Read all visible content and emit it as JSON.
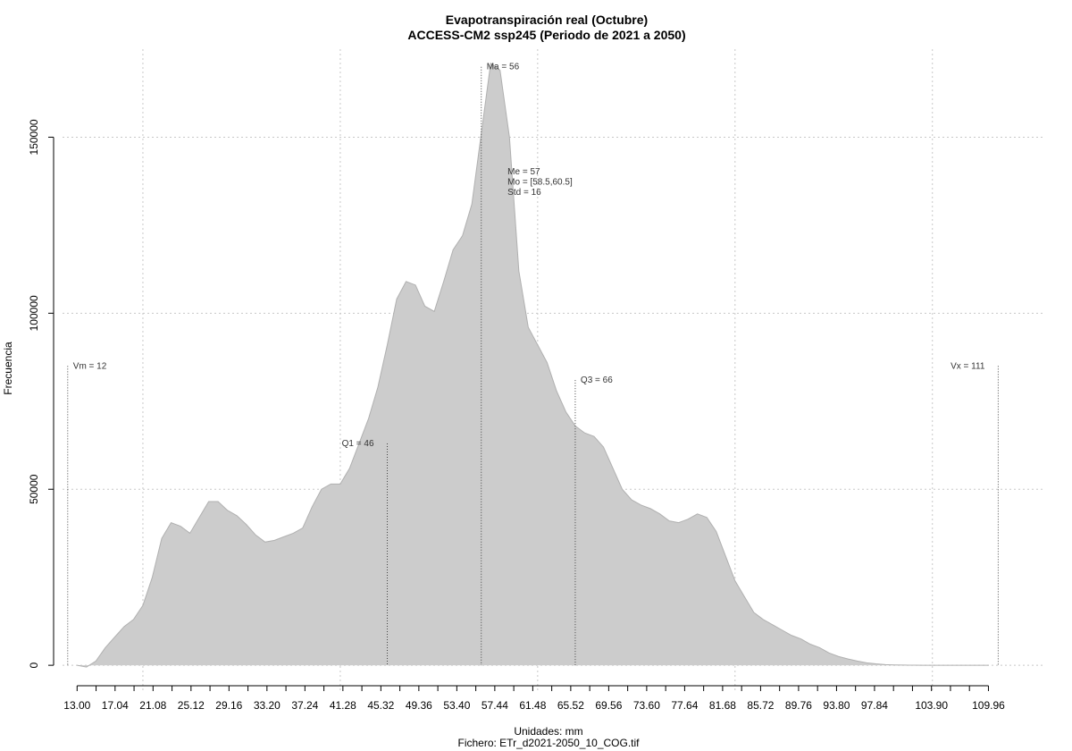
{
  "chart_data": {
    "type": "area",
    "title": "Evapotranspiración real (Octubre)",
    "subtitle": "ACCESS-CM2 ssp245 (Periodo de 2021 a 2050)",
    "xlabel": "Unidades: mm",
    "ylabel": "Frecuencia",
    "source": "Fichero: ETr_d2021-2050_10_COG.tif",
    "xlim": [
      10.5,
      116
    ],
    "ylim": [
      -2000,
      175000
    ],
    "x_ticks": [
      13.0,
      15.02,
      17.04,
      19.06,
      21.08,
      23.1,
      25.12,
      27.14,
      29.16,
      31.18,
      33.2,
      35.22,
      37.24,
      39.26,
      41.28,
      43.3,
      45.32,
      47.34,
      49.36,
      51.38,
      53.4,
      55.42,
      57.44,
      59.46,
      61.48,
      63.5,
      65.52,
      67.54,
      69.56,
      71.58,
      73.6,
      75.62,
      77.64,
      79.66,
      81.68,
      83.7,
      85.72,
      87.74,
      89.76,
      91.78,
      93.8,
      95.82,
      97.84,
      99.86,
      101.88,
      103.9,
      105.92,
      107.94,
      109.96
    ],
    "x_tick_labels": [
      "13.00",
      "17.04",
      "21.08",
      "25.12",
      "29.16",
      "33.20",
      "37.24",
      "41.28",
      "45.32",
      "49.36",
      "53.40",
      "57.44",
      "61.48",
      "65.52",
      "69.56",
      "73.60",
      "77.64",
      "81.68",
      "85.72",
      "89.76",
      "93.80",
      "97.84",
      "103.90",
      "109.96"
    ],
    "y_ticks": [
      0,
      50000,
      100000,
      150000
    ],
    "y_tick_labels": [
      "0",
      "50000",
      "100000",
      "150000"
    ],
    "x_grid": [
      20,
      41,
      62,
      83,
      104
    ],
    "grid": true,
    "series": [
      {
        "color": "#cccccc",
        "x": [
          13.0,
          14.0,
          15.0,
          16.0,
          17.0,
          18.0,
          19.0,
          20.0,
          21.0,
          22.0,
          23.0,
          24.0,
          25.0,
          26.0,
          27.0,
          28.0,
          29.0,
          30.0,
          31.0,
          32.0,
          33.0,
          34.0,
          35.0,
          36.0,
          37.0,
          38.0,
          39.0,
          40.0,
          41.0,
          42.0,
          43.0,
          44.0,
          45.0,
          46.0,
          47.0,
          48.0,
          49.0,
          50.0,
          51.0,
          52.0,
          53.0,
          54.0,
          55.0,
          56.0,
          57.0,
          58.0,
          59.0,
          60.0,
          61.0,
          62.0,
          63.0,
          64.0,
          65.0,
          66.0,
          67.0,
          68.0,
          69.0,
          70.0,
          71.0,
          72.0,
          73.0,
          74.0,
          75.0,
          76.0,
          77.0,
          78.0,
          79.0,
          80.0,
          81.0,
          82.0,
          83.0,
          84.0,
          85.0,
          86.0,
          87.0,
          88.0,
          89.0,
          90.0,
          91.0,
          92.0,
          93.0,
          94.0,
          95.0,
          96.0,
          97.0,
          98.0,
          99.0,
          100.0,
          101.0,
          102.0,
          103.0,
          104.0,
          105.0,
          106.0,
          107.0,
          108.0,
          109.0,
          110.0
        ],
        "values": [
          0,
          -500,
          1200,
          5000,
          8000,
          11000,
          13000,
          17000,
          25000,
          36000,
          40500,
          39500,
          37500,
          42000,
          46500,
          46500,
          44000,
          42500,
          40000,
          37000,
          35000,
          35500,
          36500,
          37500,
          39000,
          45000,
          50000,
          51500,
          51500,
          56000,
          63000,
          70000,
          79000,
          91000,
          104000,
          109000,
          108000,
          102000,
          100500,
          109000,
          118000,
          122000,
          131000,
          151000,
          171000,
          169000,
          150000,
          112000,
          96000,
          91000,
          86000,
          78000,
          72000,
          68000,
          66000,
          65000,
          62000,
          56000,
          50000,
          47000,
          45500,
          44500,
          43000,
          41000,
          40500,
          41500,
          43000,
          42000,
          38000,
          31000,
          24000,
          19500,
          15000,
          13000,
          11500,
          10000,
          8500,
          7500,
          6000,
          5000,
          3500,
          2500,
          1800,
          1200,
          700,
          400,
          200,
          100,
          50,
          20,
          0,
          0,
          0,
          0,
          0,
          0,
          0,
          0
        ]
      }
    ],
    "annotations": [
      {
        "label": "Vm = 12",
        "x": 12.0,
        "top": 85000,
        "text_pos": "right"
      },
      {
        "label": "Q1 = 46",
        "x": 46.0,
        "top": 63000,
        "text_pos": "left"
      },
      {
        "label": "Ma = 56",
        "x": 56.0,
        "top": 170000,
        "text_pos": "right"
      },
      {
        "label": "Q3 = 66",
        "x": 66.0,
        "top": 81000,
        "text_pos": "right"
      },
      {
        "label": "Vx = 111",
        "x": 111.0,
        "top": 85000,
        "text_pos": "left"
      }
    ],
    "stats_box": [
      "Me = 57",
      "Mo = [58.5,60.5]",
      "Std = 16"
    ]
  }
}
